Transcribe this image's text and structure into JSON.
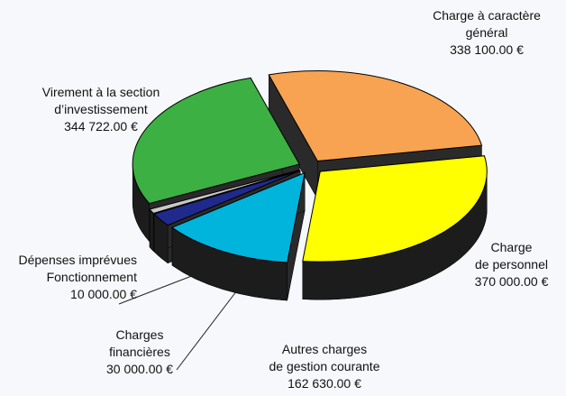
{
  "chart_data": {
    "type": "pie",
    "categories": [
      "Charge à caractère\ngénéral",
      "Charge\nde personnel",
      "Autres charges\nde gestion courante",
      "Charges\nfinancières",
      "Dépenses imprévues\nFonctionnement",
      "Virement à la section\nd’investissement"
    ],
    "values": [
      338100,
      370000,
      162630,
      30000,
      10000,
      344722
    ],
    "value_labels": [
      "338 100.00 €",
      "370 000.00 €",
      "162 630.00 €",
      "30 000.00 €",
      "10 000.00 €",
      "344 722.00 €"
    ],
    "colors": [
      "#f7a352",
      "#ffff00",
      "#00b4dc",
      "#1f2a8c",
      "#c8c8c8",
      "#3cb043"
    ]
  }
}
